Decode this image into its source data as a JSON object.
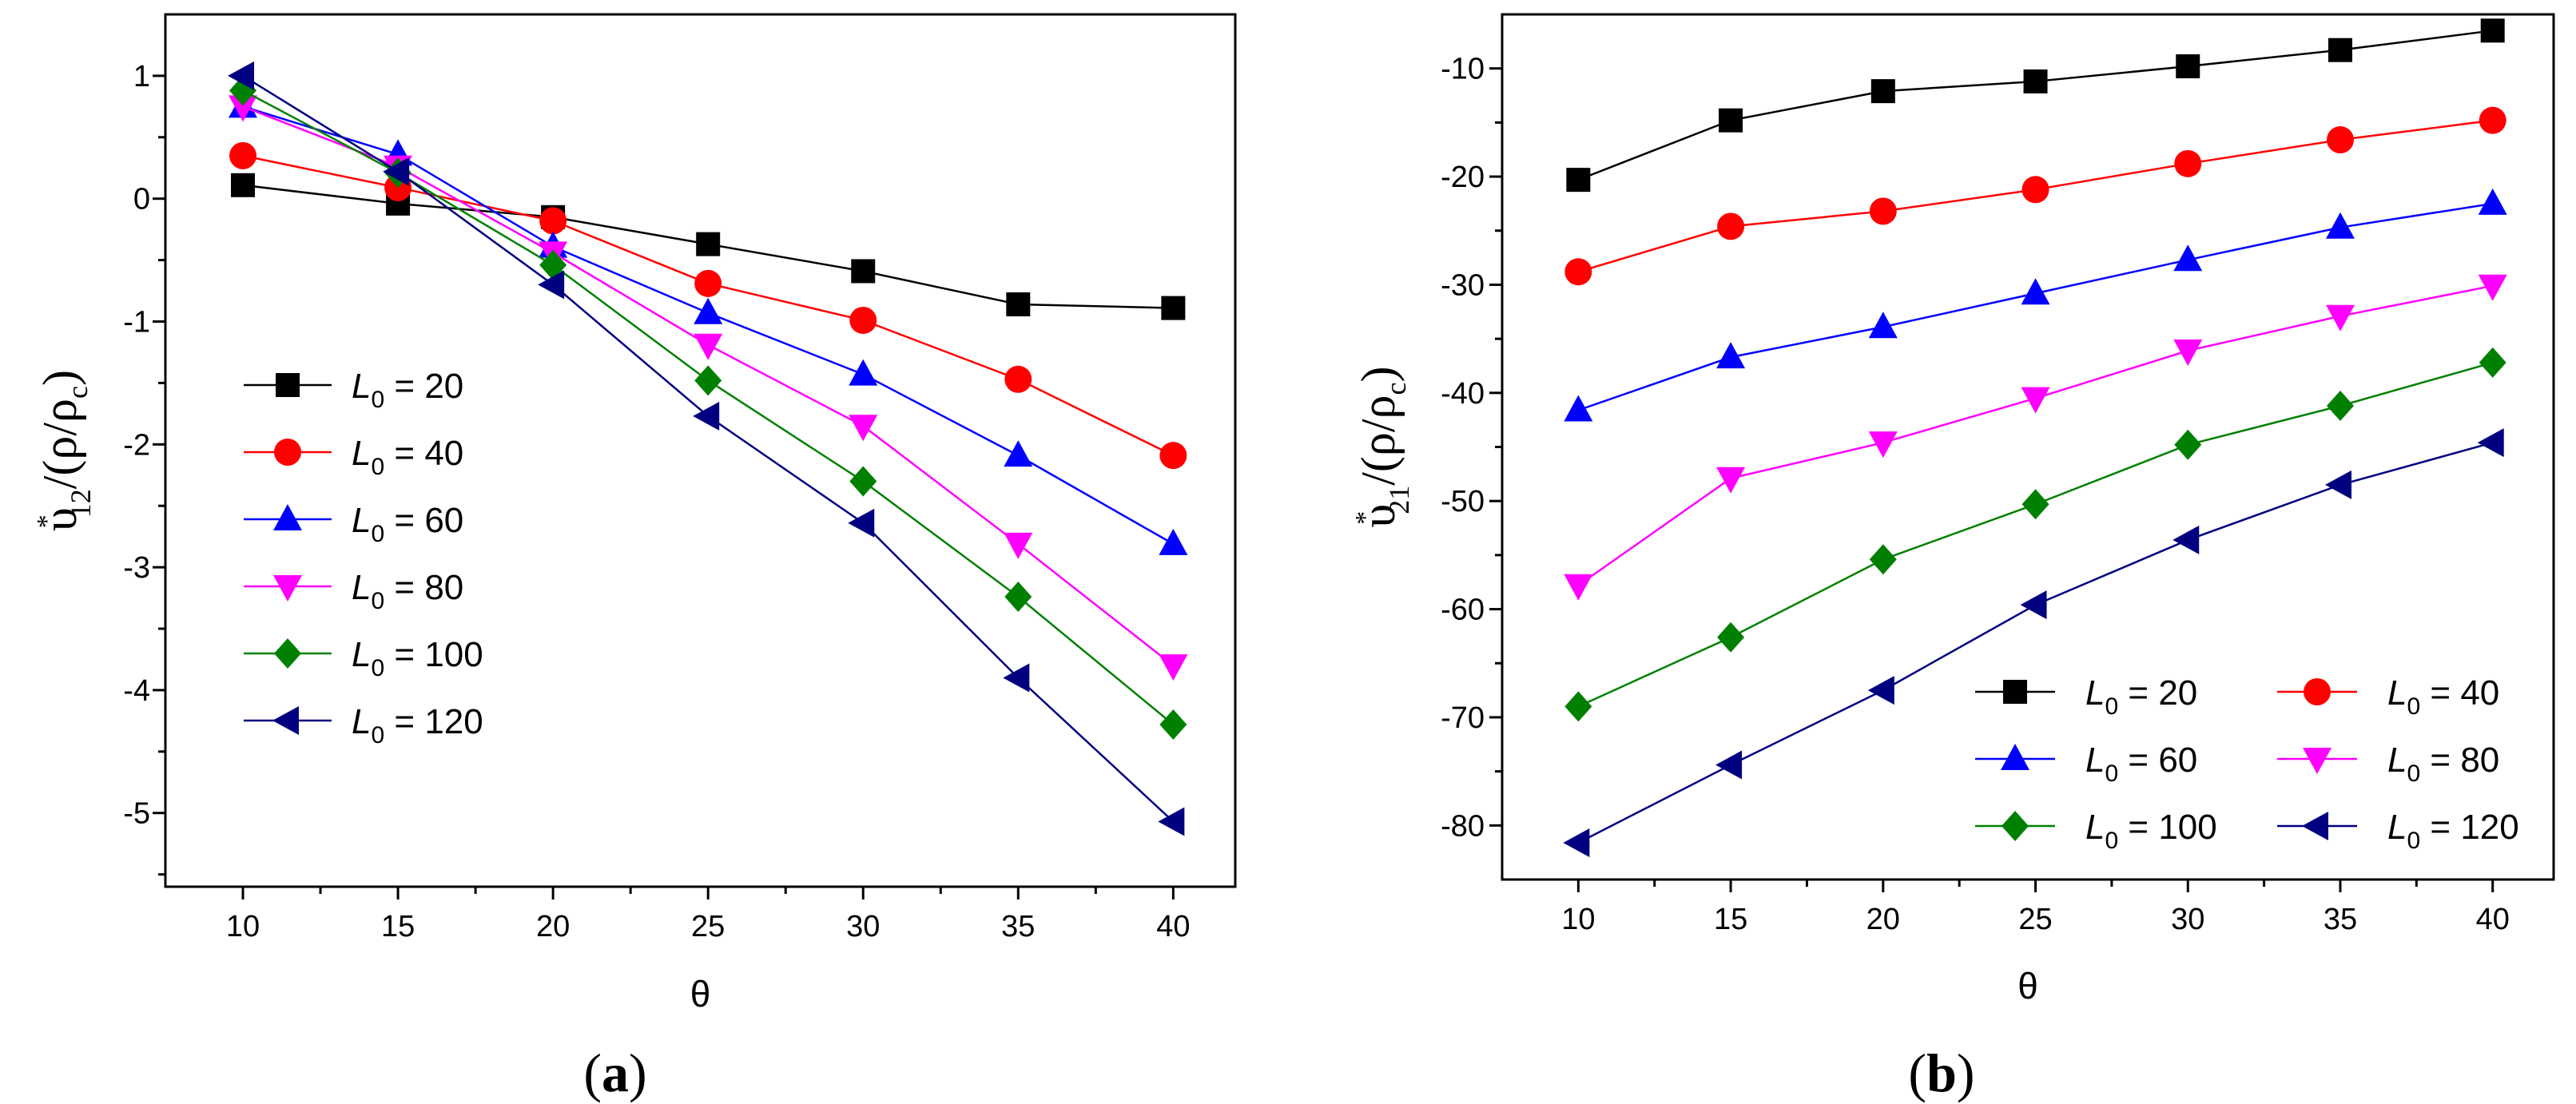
{
  "chart_data": [
    {
      "type": "line",
      "panel_label": "(a)",
      "panel_letter": "a",
      "xlabel": "θ",
      "ylabel_parts": {
        "main": "υ",
        "star": "*",
        "sub": "12",
        "tail": "/(ρ/ρ",
        "sub2": "c",
        "close": ")"
      },
      "xlim": [
        7.5,
        42
      ],
      "ylim": [
        -5.6,
        1.5
      ],
      "xticks": [
        10,
        15,
        20,
        25,
        30,
        35,
        40
      ],
      "yticks": [
        1,
        0,
        -1,
        -2,
        -3,
        -4,
        -5
      ],
      "x": [
        10,
        15,
        20,
        25,
        30,
        35,
        40
      ],
      "legend": "left",
      "series": [
        {
          "name": "L0 = 20",
          "legend_var": "L",
          "legend_sub": "0",
          "legend_val": " = 20",
          "color": "#000000",
          "marker": "square",
          "values": [
            0.11,
            -0.04,
            -0.15,
            -0.37,
            -0.59,
            -0.86,
            -0.89
          ]
        },
        {
          "name": "L0 = 40",
          "legend_var": "L",
          "legend_sub": "0",
          "legend_val": " = 40",
          "color": "#ff0000",
          "marker": "circle",
          "values": [
            0.35,
            0.09,
            -0.18,
            -0.69,
            -0.99,
            -1.47,
            -2.09
          ]
        },
        {
          "name": "L0 = 60",
          "legend_var": "L",
          "legend_sub": "0",
          "legend_val": " = 60",
          "color": "#0000ff",
          "marker": "triangle-up",
          "values": [
            0.75,
            0.36,
            -0.39,
            -0.93,
            -1.43,
            -2.09,
            -2.81
          ]
        },
        {
          "name": "L0 = 80",
          "legend_var": "L",
          "legend_sub": "0",
          "legend_val": " = 80",
          "color": "#ff00ff",
          "marker": "triangle-down",
          "values": [
            0.75,
            0.26,
            -0.44,
            -1.19,
            -1.85,
            -2.81,
            -3.8
          ]
        },
        {
          "name": "L0 = 100",
          "legend_var": "L",
          "legend_sub": "0",
          "legend_val": " = 100",
          "color": "#008000",
          "marker": "diamond",
          "values": [
            0.88,
            0.21,
            -0.54,
            -1.48,
            -2.3,
            -3.24,
            -4.28
          ]
        },
        {
          "name": "L0 = 120",
          "legend_var": "L",
          "legend_sub": "0",
          "legend_val": " = 120",
          "color": "#000080",
          "marker": "triangle-left",
          "values": [
            1.0,
            0.22,
            -0.7,
            -1.77,
            -2.64,
            -3.9,
            -5.07
          ]
        }
      ]
    },
    {
      "type": "line",
      "panel_label": "(b)",
      "panel_letter": "b",
      "xlabel": "θ",
      "ylabel_parts": {
        "main": "υ",
        "star": "*",
        "sub": "21",
        "tail": "/(ρ/ρ",
        "sub2": "c",
        "close": ")"
      },
      "xlim": [
        7.5,
        42
      ],
      "ylim": [
        -85,
        -5
      ],
      "xticks": [
        10,
        15,
        20,
        25,
        30,
        35,
        40
      ],
      "yticks": [
        -10,
        -20,
        -30,
        -40,
        -50,
        -60,
        -70,
        -80
      ],
      "x": [
        10,
        15,
        20,
        25,
        30,
        35,
        40
      ],
      "legend": "bottom-right",
      "series": [
        {
          "name": "L0 = 20",
          "legend_var": "L",
          "legend_sub": "0",
          "legend_val": " = 20",
          "color": "#000000",
          "marker": "square",
          "values": [
            -20.3,
            -14.8,
            -12.1,
            -11.2,
            -9.8,
            -8.3,
            -6.5
          ]
        },
        {
          "name": "L0 = 40",
          "legend_var": "L",
          "legend_sub": "0",
          "legend_val": " = 40",
          "color": "#ff0000",
          "marker": "circle",
          "values": [
            -28.8,
            -24.6,
            -23.2,
            -21.2,
            -18.8,
            -16.6,
            -14.8
          ]
        },
        {
          "name": "L0 = 60",
          "legend_var": "L",
          "legend_sub": "0",
          "legend_val": " = 60",
          "color": "#0000ff",
          "marker": "triangle-up",
          "values": [
            -41.6,
            -36.7,
            -33.9,
            -30.8,
            -27.7,
            -24.7,
            -22.5
          ]
        },
        {
          "name": "L0 = 80",
          "legend_var": "L",
          "legend_sub": "0",
          "legend_val": " = 80",
          "color": "#ff00ff",
          "marker": "triangle-down",
          "values": [
            -57.8,
            -47.9,
            -44.6,
            -40.5,
            -36.1,
            -32.9,
            -30.1
          ]
        },
        {
          "name": "L0 = 100",
          "legend_var": "L",
          "legend_sub": "0",
          "legend_val": " = 100",
          "color": "#008000",
          "marker": "diamond",
          "values": [
            -69.0,
            -62.6,
            -55.4,
            -50.3,
            -44.8,
            -41.2,
            -37.2
          ]
        },
        {
          "name": "L0 = 120",
          "legend_var": "L",
          "legend_sub": "0",
          "legend_val": " = 120",
          "color": "#000080",
          "marker": "triangle-left",
          "values": [
            -81.6,
            -74.4,
            -67.5,
            -59.6,
            -53.6,
            -48.5,
            -44.6
          ]
        }
      ]
    }
  ]
}
